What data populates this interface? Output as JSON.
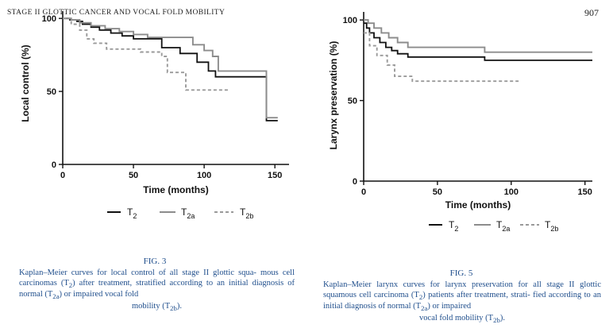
{
  "header": {
    "running_title": "STAGE II GLOTTIC CANCER AND VOCAL FOLD MOBILITY",
    "page_number": "907"
  },
  "figures": [
    {
      "label": "FIG. 3",
      "caption": [
        "Kaplan–Meier curves for local control of all stage II glottic squa-",
        "mous cell carcinomas (T",
        "2",
        ") after treatment, stratified according to",
        "an initial diagnosis of normal (T",
        "2a",
        ") or impaired vocal fold",
        "mobility (T",
        "2b",
        ")."
      ]
    },
    {
      "label": "FIG. 5",
      "caption": [
        "Kaplan–Meier larynx curves for larynx preservation for all stage II",
        "glottic squamous cell carcinoma (T",
        "2",
        ") patients after treatment, strati-",
        "fied according to an initial diagnosis of normal (T",
        "2a",
        ") or impaired",
        "vocal fold mobility (T",
        "2b",
        ")."
      ]
    }
  ],
  "chart_data": [
    {
      "type": "line",
      "title": "",
      "xlabel": "Time (months)",
      "ylabel": "Local control (%)",
      "xlim": [
        0,
        160
      ],
      "ylim": [
        0,
        105
      ],
      "xticks": [
        "0",
        "50",
        "100",
        "150"
      ],
      "yticks": [
        "0",
        "50",
        "100"
      ],
      "legend_position": "bottom",
      "series": [
        {
          "name": "T",
          "sub": "2",
          "color": "#111111",
          "style": "solid",
          "points": [
            [
              0,
              100
            ],
            [
              5,
              100
            ],
            [
              5,
              99
            ],
            [
              10,
              99
            ],
            [
              10,
              98
            ],
            [
              14,
              98
            ],
            [
              14,
              96
            ],
            [
              20,
              96
            ],
            [
              20,
              94
            ],
            [
              26,
              94
            ],
            [
              26,
              92
            ],
            [
              34,
              92
            ],
            [
              34,
              90
            ],
            [
              42,
              90
            ],
            [
              42,
              88
            ],
            [
              50,
              88
            ],
            [
              50,
              86
            ],
            [
              70,
              86
            ],
            [
              70,
              80
            ],
            [
              83,
              80
            ],
            [
              83,
              76
            ],
            [
              95,
              76
            ],
            [
              95,
              70
            ],
            [
              103,
              70
            ],
            [
              103,
              64
            ],
            [
              108,
              64
            ],
            [
              108,
              60
            ],
            [
              144,
              60
            ],
            [
              144,
              30
            ],
            [
              152,
              30
            ]
          ]
        },
        {
          "name": "T",
          "sub": "2a",
          "color": "#8c8c8c",
          "style": "solid",
          "points": [
            [
              0,
              100
            ],
            [
              6,
              100
            ],
            [
              6,
              99
            ],
            [
              12,
              99
            ],
            [
              12,
              97
            ],
            [
              20,
              97
            ],
            [
              20,
              95
            ],
            [
              30,
              95
            ],
            [
              30,
              93
            ],
            [
              40,
              93
            ],
            [
              40,
              91
            ],
            [
              50,
              91
            ],
            [
              50,
              89
            ],
            [
              60,
              89
            ],
            [
              60,
              87
            ],
            [
              92,
              87
            ],
            [
              92,
              82
            ],
            [
              100,
              82
            ],
            [
              100,
              78
            ],
            [
              106,
              78
            ],
            [
              106,
              74
            ],
            [
              110,
              74
            ],
            [
              110,
              64
            ],
            [
              144,
              64
            ],
            [
              144,
              32
            ],
            [
              152,
              32
            ]
          ]
        },
        {
          "name": "T",
          "sub": "2b",
          "color": "#9a9a9a",
          "style": "dashed",
          "points": [
            [
              0,
              100
            ],
            [
              6,
              100
            ],
            [
              6,
              96
            ],
            [
              12,
              96
            ],
            [
              12,
              92
            ],
            [
              17,
              92
            ],
            [
              17,
              86
            ],
            [
              22,
              86
            ],
            [
              22,
              83
            ],
            [
              31,
              83
            ],
            [
              31,
              79
            ],
            [
              55,
              79
            ],
            [
              55,
              77
            ],
            [
              70,
              77
            ],
            [
              70,
              74
            ],
            [
              74,
              74
            ],
            [
              74,
              63
            ],
            [
              87,
              63
            ],
            [
              87,
              51
            ],
            [
              117,
              51
            ]
          ]
        }
      ]
    },
    {
      "type": "line",
      "title": "",
      "xlabel": "Time (months)",
      "ylabel": "Larynx preservation (%)",
      "xlim": [
        0,
        155
      ],
      "ylim": [
        0,
        105
      ],
      "xticks": [
        "0",
        "50",
        "100",
        "150"
      ],
      "yticks": [
        "0",
        "50",
        "100"
      ],
      "legend_position": "bottom",
      "series": [
        {
          "name": "T",
          "sub": "2",
          "color": "#111111",
          "style": "solid",
          "points": [
            [
              0,
              98
            ],
            [
              2,
              98
            ],
            [
              2,
              95
            ],
            [
              4,
              95
            ],
            [
              4,
              92
            ],
            [
              7,
              92
            ],
            [
              7,
              89
            ],
            [
              11,
              89
            ],
            [
              11,
              86
            ],
            [
              15,
              86
            ],
            [
              15,
              83
            ],
            [
              19,
              83
            ],
            [
              19,
              81
            ],
            [
              23,
              81
            ],
            [
              23,
              79
            ],
            [
              30,
              79
            ],
            [
              30,
              77
            ],
            [
              82,
              77
            ],
            [
              82,
              75
            ],
            [
              155,
              75
            ]
          ]
        },
        {
          "name": "T",
          "sub": "2a",
          "color": "#8c8c8c",
          "style": "solid",
          "points": [
            [
              0,
              100
            ],
            [
              3,
              100
            ],
            [
              3,
              98
            ],
            [
              7,
              98
            ],
            [
              7,
              95
            ],
            [
              12,
              95
            ],
            [
              12,
              92
            ],
            [
              17,
              92
            ],
            [
              17,
              89
            ],
            [
              23,
              89
            ],
            [
              23,
              86
            ],
            [
              30,
              86
            ],
            [
              30,
              83
            ],
            [
              82,
              83
            ],
            [
              82,
              80
            ],
            [
              155,
              80
            ]
          ]
        },
        {
          "name": "T",
          "sub": "2b",
          "color": "#9a9a9a",
          "style": "dashed",
          "points": [
            [
              0,
              92
            ],
            [
              4,
              92
            ],
            [
              4,
              84
            ],
            [
              9,
              84
            ],
            [
              9,
              78
            ],
            [
              16,
              78
            ],
            [
              16,
              72
            ],
            [
              21,
              72
            ],
            [
              21,
              65
            ],
            [
              33,
              65
            ],
            [
              33,
              62
            ],
            [
              105,
              62
            ]
          ]
        }
      ]
    }
  ]
}
